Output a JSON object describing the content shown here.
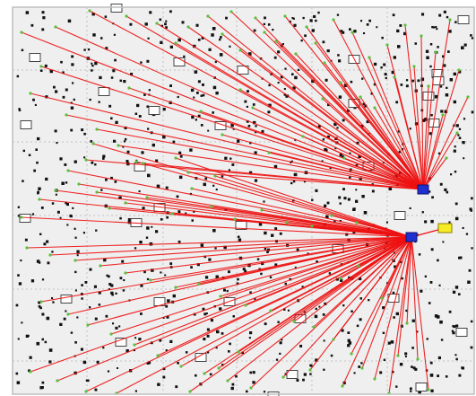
{
  "colors": {
    "background": "#efefef",
    "frame": "#bdbdbd",
    "grid": "#b4b4b4",
    "dot": "#111111",
    "link": "#ee1111",
    "node_end": "#5ac03a",
    "hub": "#1f2fd0",
    "hub_outline": "#0b1470",
    "relay": "#f5ec25",
    "relay_outline": "#8a7e00",
    "marker_fill": "#ffffff",
    "marker_outline": "#444444"
  },
  "hubs": [
    {
      "name": "upper-hub",
      "color": "#1f2fd0"
    },
    {
      "name": "lower-hub",
      "color": "#1f2fd0"
    }
  ],
  "relay": {
    "name": "relay-node",
    "color": "#f5ec25"
  },
  "marker_icon": "open-square",
  "dot_icon": "filled-square"
}
